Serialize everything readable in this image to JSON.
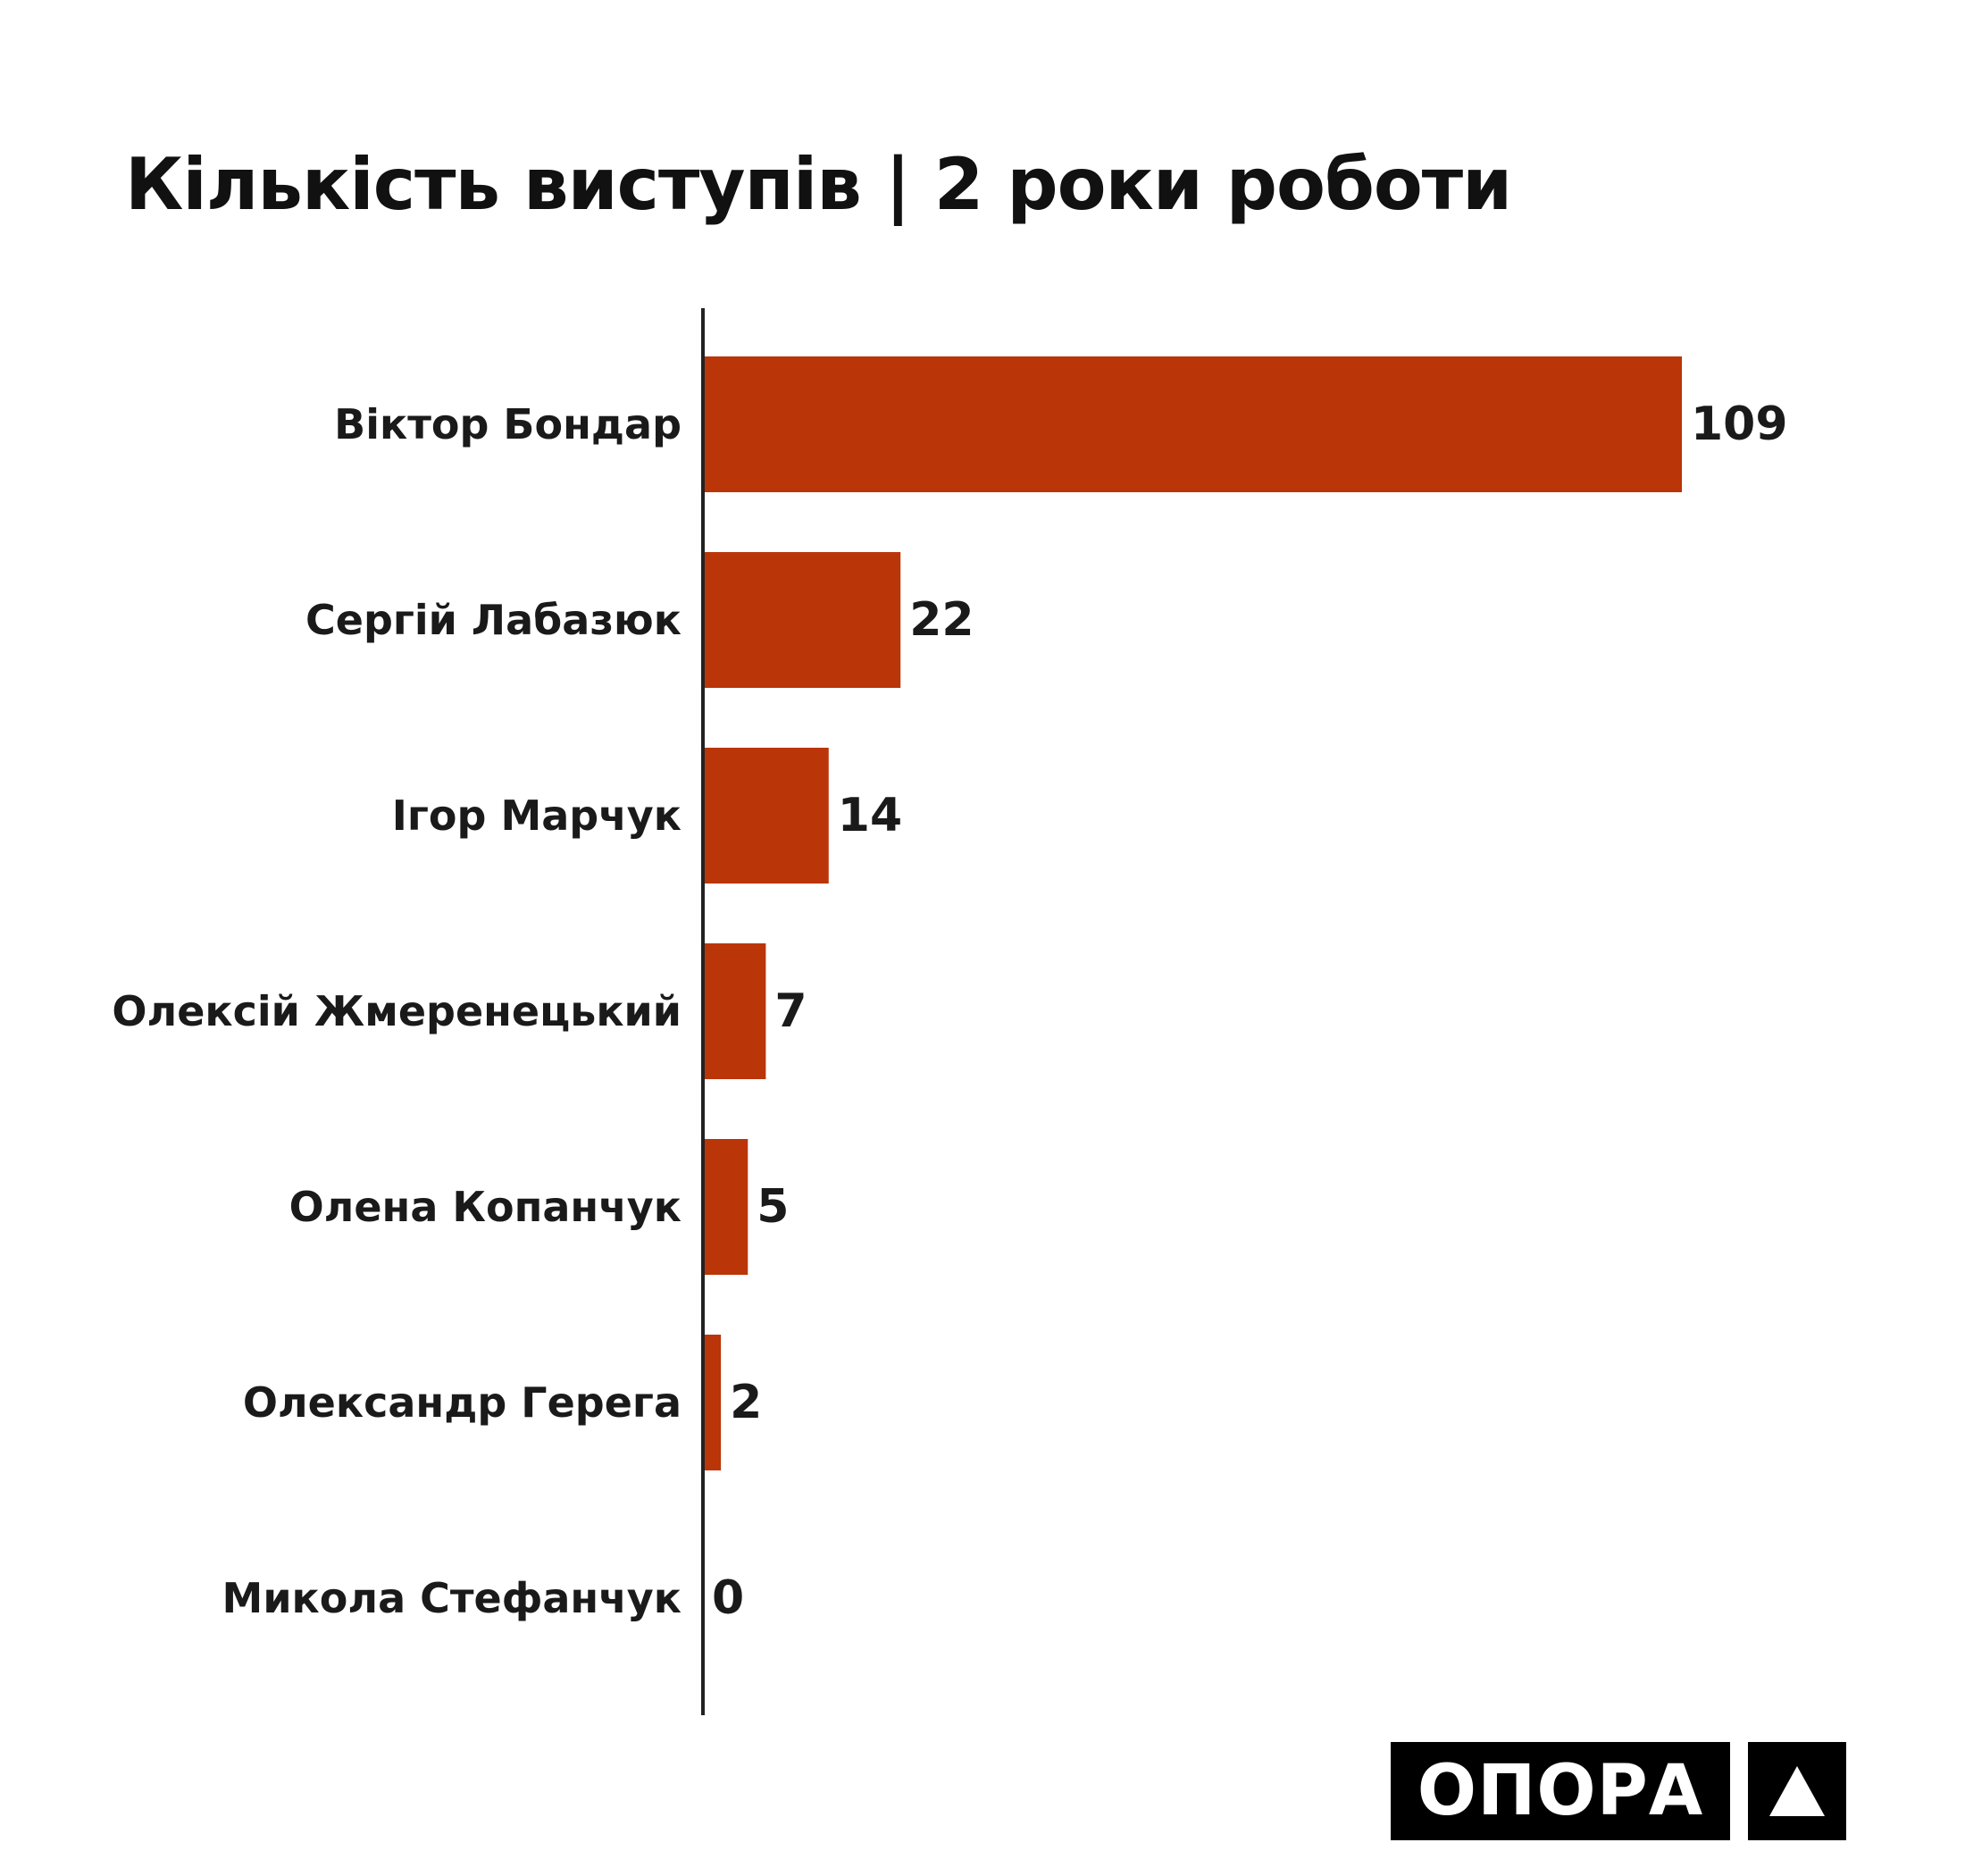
{
  "chart_data": {
    "type": "bar",
    "orientation": "horizontal",
    "title": "Кількість виступів | 2 роки роботи",
    "categories": [
      "Віктор Бондар",
      "Сергій Лабазюк",
      "Ігор Марчук",
      "Олексій Жмеренецький",
      "Олена Копанчук",
      "Олександр Герега",
      "Микола Стефанчук"
    ],
    "values": [
      109,
      22,
      14,
      7,
      5,
      2,
      0
    ],
    "value_labels": [
      "109",
      "22",
      "14",
      "7",
      "5",
      "2",
      "0"
    ],
    "xlim": [
      0,
      109
    ],
    "bar_color": "#BA3508",
    "grid": false,
    "legend": "none"
  },
  "logo": {
    "text": "ОПОРА"
  }
}
